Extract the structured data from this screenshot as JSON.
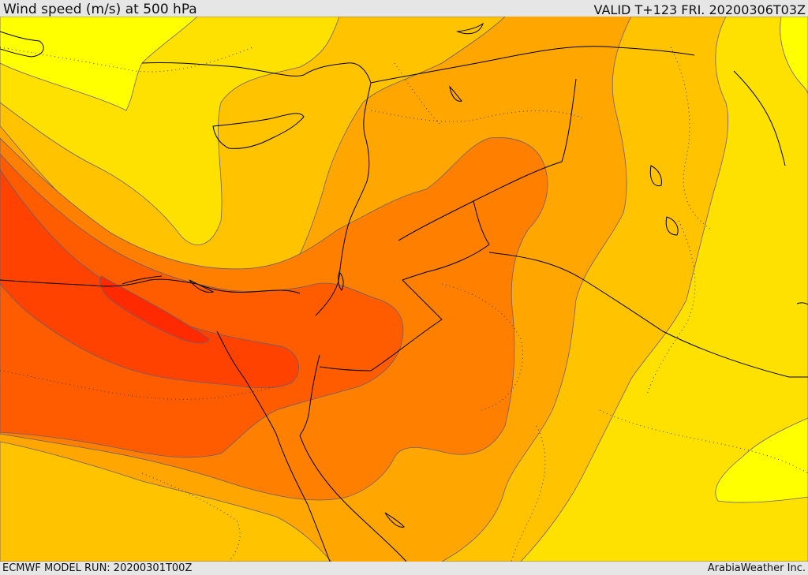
{
  "title": "Wind speed (m/s) at 500 hPa",
  "valid": "VALID T+123 FRI. 20200306T03Z",
  "model_run": "ECMWF MODEL RUN: 20200301T00Z",
  "brand": "ArabiaWeather Inc.",
  "colors": {
    "band_1": "#ffff00",
    "band_2": "#ffe100",
    "band_3": "#ffc300",
    "band_4": "#ffa600",
    "band_5": "#ff8000",
    "band_6": "#ff5c00",
    "band_7": "#ff4200",
    "band_8": "#ff2a00",
    "contour": "#6b5e6e",
    "coast": "#000000"
  }
}
